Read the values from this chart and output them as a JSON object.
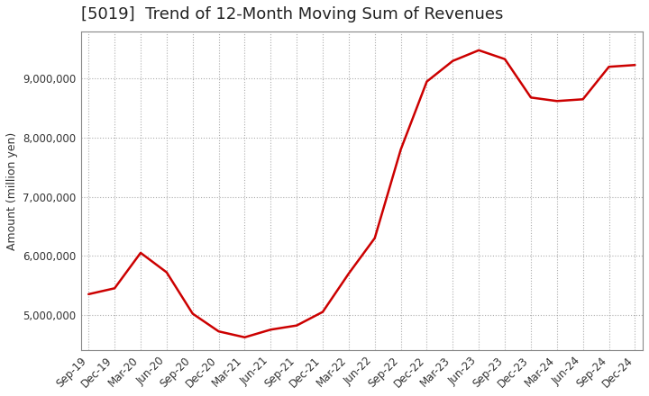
{
  "title": "[5019]  Trend of 12-Month Moving Sum of Revenues",
  "ylabel": "Amount (million yen)",
  "line_color": "#cc0000",
  "background_color": "#ffffff",
  "plot_background": "#ffffff",
  "grid_color": "#999999",
  "x_labels": [
    "Sep-19",
    "Dec-19",
    "Mar-20",
    "Jun-20",
    "Sep-20",
    "Dec-20",
    "Mar-21",
    "Jun-21",
    "Sep-21",
    "Dec-21",
    "Mar-22",
    "Jun-22",
    "Sep-22",
    "Dec-22",
    "Mar-23",
    "Jun-23",
    "Sep-23",
    "Dec-23",
    "Mar-24",
    "Jun-24",
    "Sep-24",
    "Dec-24"
  ],
  "y_values": [
    5350000,
    5450000,
    6050000,
    5720000,
    5020000,
    4720000,
    4620000,
    4750000,
    4820000,
    5050000,
    5700000,
    6300000,
    7800000,
    8950000,
    9300000,
    9480000,
    9330000,
    8680000,
    8620000,
    8650000,
    9200000,
    9230000
  ],
  "ylim": [
    4400000,
    9800000
  ],
  "yticks": [
    5000000,
    6000000,
    7000000,
    8000000,
    9000000
  ],
  "title_fontsize": 13,
  "axis_fontsize": 9,
  "tick_fontsize": 8.5
}
